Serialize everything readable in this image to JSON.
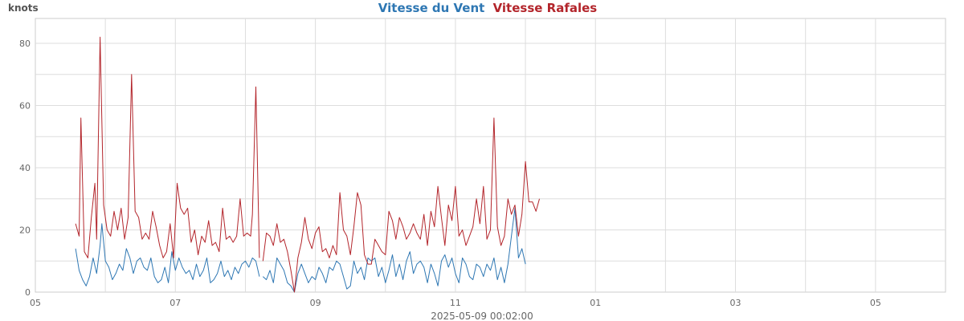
{
  "chart_data": {
    "type": "line",
    "ylabel": "knots",
    "footer": "2025-05-09 00:02:00",
    "ylim": [
      0,
      88
    ],
    "yticks": [
      0,
      20,
      40,
      60,
      80
    ],
    "xlim": [
      0,
      26
    ],
    "xticks": [
      0,
      2,
      4,
      6,
      8,
      10,
      12,
      14,
      16,
      18,
      20,
      22,
      24,
      26
    ],
    "xtick_labels": [
      "05",
      "07",
      "09",
      "11",
      "01",
      "03",
      "05"
    ],
    "grid": true,
    "legend": "top-center",
    "series": [
      {
        "name": "Vitesse du Vent",
        "color": "#2e77b3",
        "segments": [
          [
            [
              1.15,
              14
            ],
            [
              1.25,
              7
            ],
            [
              1.35,
              4
            ],
            [
              1.45,
              2
            ],
            [
              1.55,
              5
            ],
            [
              1.65,
              11
            ],
            [
              1.75,
              6
            ],
            [
              1.85,
              15
            ],
            [
              1.9,
              22
            ],
            [
              2.0,
              10
            ],
            [
              2.1,
              8
            ],
            [
              2.2,
              4
            ],
            [
              2.3,
              6
            ],
            [
              2.4,
              9
            ],
            [
              2.5,
              7
            ],
            [
              2.6,
              14
            ],
            [
              2.7,
              11
            ],
            [
              2.8,
              6
            ],
            [
              2.9,
              10
            ],
            [
              3.0,
              11
            ],
            [
              3.1,
              8
            ],
            [
              3.2,
              7
            ],
            [
              3.3,
              11
            ],
            [
              3.4,
              5
            ],
            [
              3.5,
              3
            ],
            [
              3.6,
              4
            ],
            [
              3.7,
              8
            ],
            [
              3.8,
              3
            ],
            [
              3.9,
              13
            ],
            [
              4.0,
              7
            ],
            [
              4.1,
              11
            ],
            [
              4.2,
              8
            ],
            [
              4.3,
              6
            ],
            [
              4.4,
              7
            ],
            [
              4.5,
              4
            ],
            [
              4.6,
              9
            ],
            [
              4.7,
              5
            ],
            [
              4.8,
              7
            ],
            [
              4.9,
              11
            ],
            [
              5.0,
              3
            ],
            [
              5.1,
              4
            ],
            [
              5.2,
              6
            ],
            [
              5.3,
              10
            ],
            [
              5.4,
              5
            ],
            [
              5.5,
              7
            ],
            [
              5.6,
              4
            ],
            [
              5.7,
              8
            ],
            [
              5.8,
              6
            ],
            [
              5.9,
              9
            ],
            [
              6.0,
              10
            ],
            [
              6.1,
              8
            ],
            [
              6.2,
              11
            ],
            [
              6.3,
              10
            ],
            [
              6.4,
              5
            ]
          ],
          [
            [
              6.5,
              5
            ],
            [
              6.6,
              4
            ],
            [
              6.7,
              7
            ],
            [
              6.8,
              3
            ],
            [
              6.9,
              11
            ],
            [
              7.0,
              9
            ],
            [
              7.1,
              7
            ],
            [
              7.2,
              3
            ],
            [
              7.3,
              2
            ],
            [
              7.4,
              0
            ],
            [
              7.5,
              6
            ],
            [
              7.6,
              9
            ],
            [
              7.7,
              6
            ],
            [
              7.8,
              3
            ],
            [
              7.9,
              5
            ],
            [
              8.0,
              4
            ],
            [
              8.1,
              8
            ],
            [
              8.2,
              6
            ],
            [
              8.3,
              3
            ],
            [
              8.4,
              8
            ],
            [
              8.5,
              7
            ],
            [
              8.6,
              10
            ],
            [
              8.7,
              9
            ],
            [
              8.8,
              5
            ],
            [
              8.9,
              1
            ],
            [
              9.0,
              2
            ],
            [
              9.1,
              10
            ],
            [
              9.2,
              6
            ],
            [
              9.3,
              8
            ],
            [
              9.4,
              4
            ],
            [
              9.5,
              11
            ],
            [
              9.6,
              10
            ],
            [
              9.7,
              11
            ],
            [
              9.8,
              5
            ],
            [
              9.9,
              8
            ],
            [
              10.0,
              3
            ],
            [
              10.1,
              7
            ],
            [
              10.2,
              12
            ],
            [
              10.3,
              5
            ],
            [
              10.4,
              9
            ],
            [
              10.5,
              4
            ],
            [
              10.6,
              10
            ],
            [
              10.7,
              13
            ],
            [
              10.8,
              6
            ],
            [
              10.9,
              9
            ],
            [
              11.0,
              10
            ],
            [
              11.1,
              8
            ],
            [
              11.2,
              3
            ],
            [
              11.3,
              9
            ],
            [
              11.4,
              6
            ],
            [
              11.5,
              2
            ],
            [
              11.6,
              10
            ],
            [
              11.7,
              12
            ],
            [
              11.8,
              8
            ],
            [
              11.9,
              11
            ],
            [
              12.0,
              6
            ],
            [
              12.1,
              3
            ],
            [
              12.2,
              11
            ],
            [
              12.3,
              9
            ],
            [
              12.4,
              5
            ],
            [
              12.5,
              4
            ],
            [
              12.6,
              9
            ],
            [
              12.7,
              8
            ],
            [
              12.8,
              5
            ],
            [
              12.9,
              9
            ],
            [
              13.0,
              7
            ],
            [
              13.1,
              11
            ],
            [
              13.2,
              4
            ],
            [
              13.3,
              8
            ],
            [
              13.4,
              3
            ],
            [
              13.5,
              9
            ],
            [
              13.6,
              18
            ],
            [
              13.7,
              27
            ],
            [
              13.8,
              11
            ],
            [
              13.9,
              14
            ],
            [
              14.0,
              9
            ]
          ]
        ]
      },
      {
        "name": "Vitesse Rafales",
        "color": "#b3252b",
        "segments": [
          [
            [
              1.15,
              22
            ],
            [
              1.25,
              18
            ],
            [
              1.3,
              56
            ],
            [
              1.4,
              13
            ],
            [
              1.5,
              11
            ],
            [
              1.6,
              24
            ],
            [
              1.7,
              35
            ],
            [
              1.75,
              17
            ],
            [
              1.85,
              82
            ],
            [
              1.95,
              28
            ],
            [
              2.05,
              20
            ],
            [
              2.15,
              18
            ],
            [
              2.25,
              26
            ],
            [
              2.35,
              20
            ],
            [
              2.45,
              27
            ],
            [
              2.55,
              17
            ],
            [
              2.65,
              24
            ],
            [
              2.75,
              70
            ],
            [
              2.85,
              26
            ],
            [
              2.95,
              24
            ],
            [
              3.05,
              17
            ],
            [
              3.15,
              19
            ],
            [
              3.25,
              17
            ],
            [
              3.35,
              26
            ],
            [
              3.45,
              21
            ],
            [
              3.55,
              15
            ],
            [
              3.65,
              11
            ],
            [
              3.75,
              13
            ],
            [
              3.85,
              22
            ],
            [
              3.95,
              11
            ],
            [
              4.05,
              35
            ],
            [
              4.15,
              27
            ],
            [
              4.25,
              25
            ],
            [
              4.35,
              27
            ],
            [
              4.45,
              16
            ],
            [
              4.55,
              20
            ],
            [
              4.65,
              12
            ],
            [
              4.75,
              18
            ],
            [
              4.85,
              16
            ],
            [
              4.95,
              23
            ],
            [
              5.05,
              15
            ],
            [
              5.15,
              16
            ],
            [
              5.25,
              13
            ],
            [
              5.35,
              27
            ],
            [
              5.45,
              17
            ],
            [
              5.55,
              18
            ],
            [
              5.65,
              16
            ],
            [
              5.75,
              18
            ],
            [
              5.85,
              30
            ],
            [
              5.95,
              18
            ],
            [
              6.05,
              19
            ],
            [
              6.15,
              18
            ],
            [
              6.2,
              25
            ],
            [
              6.3,
              66
            ],
            [
              6.4,
              11
            ]
          ],
          [
            [
              6.5,
              10
            ],
            [
              6.6,
              19
            ],
            [
              6.7,
              18
            ],
            [
              6.8,
              15
            ],
            [
              6.9,
              22
            ],
            [
              7.0,
              16
            ],
            [
              7.1,
              17
            ],
            [
              7.2,
              13
            ],
            [
              7.3,
              7
            ],
            [
              7.4,
              0
            ],
            [
              7.5,
              11
            ],
            [
              7.6,
              16
            ],
            [
              7.7,
              24
            ],
            [
              7.8,
              17
            ],
            [
              7.9,
              14
            ],
            [
              8.0,
              19
            ],
            [
              8.1,
              21
            ],
            [
              8.2,
              13
            ],
            [
              8.3,
              14
            ],
            [
              8.4,
              11
            ],
            [
              8.5,
              15
            ],
            [
              8.6,
              12
            ],
            [
              8.7,
              32
            ],
            [
              8.8,
              20
            ],
            [
              8.9,
              18
            ],
            [
              9.0,
              12
            ],
            [
              9.1,
              21
            ],
            [
              9.2,
              32
            ],
            [
              9.3,
              28
            ],
            [
              9.4,
              12
            ],
            [
              9.5,
              9
            ],
            [
              9.6,
              9
            ],
            [
              9.7,
              17
            ],
            [
              9.8,
              15
            ],
            [
              9.9,
              13
            ],
            [
              10.0,
              12
            ],
            [
              10.1,
              26
            ],
            [
              10.2,
              23
            ],
            [
              10.3,
              17
            ],
            [
              10.4,
              24
            ],
            [
              10.5,
              21
            ],
            [
              10.6,
              17
            ],
            [
              10.7,
              19
            ],
            [
              10.8,
              22
            ],
            [
              10.9,
              19
            ],
            [
              11.0,
              17
            ],
            [
              11.1,
              25
            ],
            [
              11.2,
              15
            ],
            [
              11.3,
              26
            ],
            [
              11.4,
              21
            ],
            [
              11.5,
              34
            ],
            [
              11.6,
              24
            ],
            [
              11.7,
              15
            ],
            [
              11.8,
              28
            ],
            [
              11.9,
              23
            ],
            [
              12.0,
              34
            ],
            [
              12.1,
              18
            ],
            [
              12.2,
              20
            ],
            [
              12.3,
              15
            ],
            [
              12.4,
              18
            ],
            [
              12.5,
              21
            ],
            [
              12.6,
              30
            ],
            [
              12.7,
              22
            ],
            [
              12.8,
              34
            ],
            [
              12.9,
              17
            ],
            [
              13.0,
              20
            ],
            [
              13.1,
              56
            ],
            [
              13.2,
              21
            ],
            [
              13.3,
              15
            ],
            [
              13.4,
              18
            ],
            [
              13.5,
              30
            ],
            [
              13.6,
              25
            ],
            [
              13.7,
              28
            ],
            [
              13.8,
              18
            ],
            [
              13.9,
              25
            ],
            [
              14.0,
              42
            ],
            [
              14.1,
              29
            ],
            [
              14.2,
              29
            ],
            [
              14.3,
              26
            ],
            [
              14.4,
              30
            ]
          ]
        ]
      }
    ]
  }
}
